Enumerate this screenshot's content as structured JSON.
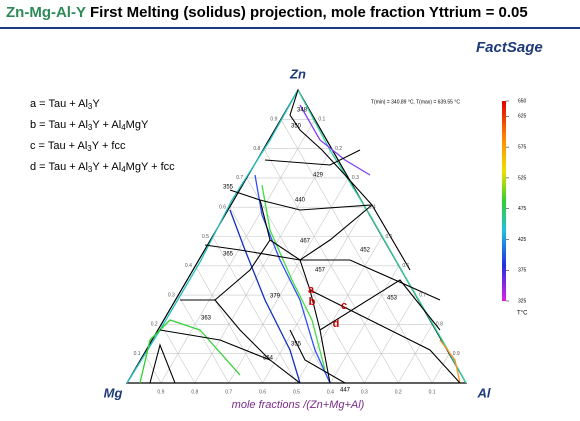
{
  "header": {
    "title_system": "Zn-Mg-Al-Y",
    "title_rest": "First Melting (solidus) projection, mole fraction Yttrium = 0.05",
    "logo": "FactSage"
  },
  "legend": [
    [
      "a = Tau + Al",
      "3",
      "Y"
    ],
    [
      "b = Tau + Al",
      "3",
      "Y + Al",
      "4",
      "MgY"
    ],
    [
      "c = Tau + Al",
      "3",
      "Y + fcc"
    ],
    [
      "d = Tau + Al",
      "3",
      "Y + Al",
      "4",
      "MgY + fcc"
    ]
  ],
  "corners": {
    "top": "Zn",
    "left": "Mg",
    "right": "Al"
  },
  "axis_title": "mole fractions /(Zn+Mg+Al)",
  "axis_ticks": [
    "0.9",
    "0.8",
    "0.7",
    "0.6",
    "0.5",
    "0.4",
    "0.3",
    "0.2",
    "0.1"
  ],
  "temperature_range": "T(min) = 340.89 °C, T(max) = 639.55 °C",
  "colorbar": {
    "lim": [
      325,
      650
    ],
    "ticks": [
      650,
      625,
      575,
      525,
      475,
      425,
      375,
      325
    ],
    "unit": "T°C"
  },
  "regions": [
    "348",
    "350",
    "429",
    "440",
    "467",
    "452",
    "457",
    "453",
    "355",
    "365",
    "379",
    "363",
    "364",
    "355",
    "447"
  ],
  "points": [
    "a",
    "b",
    "c",
    "d"
  ]
}
